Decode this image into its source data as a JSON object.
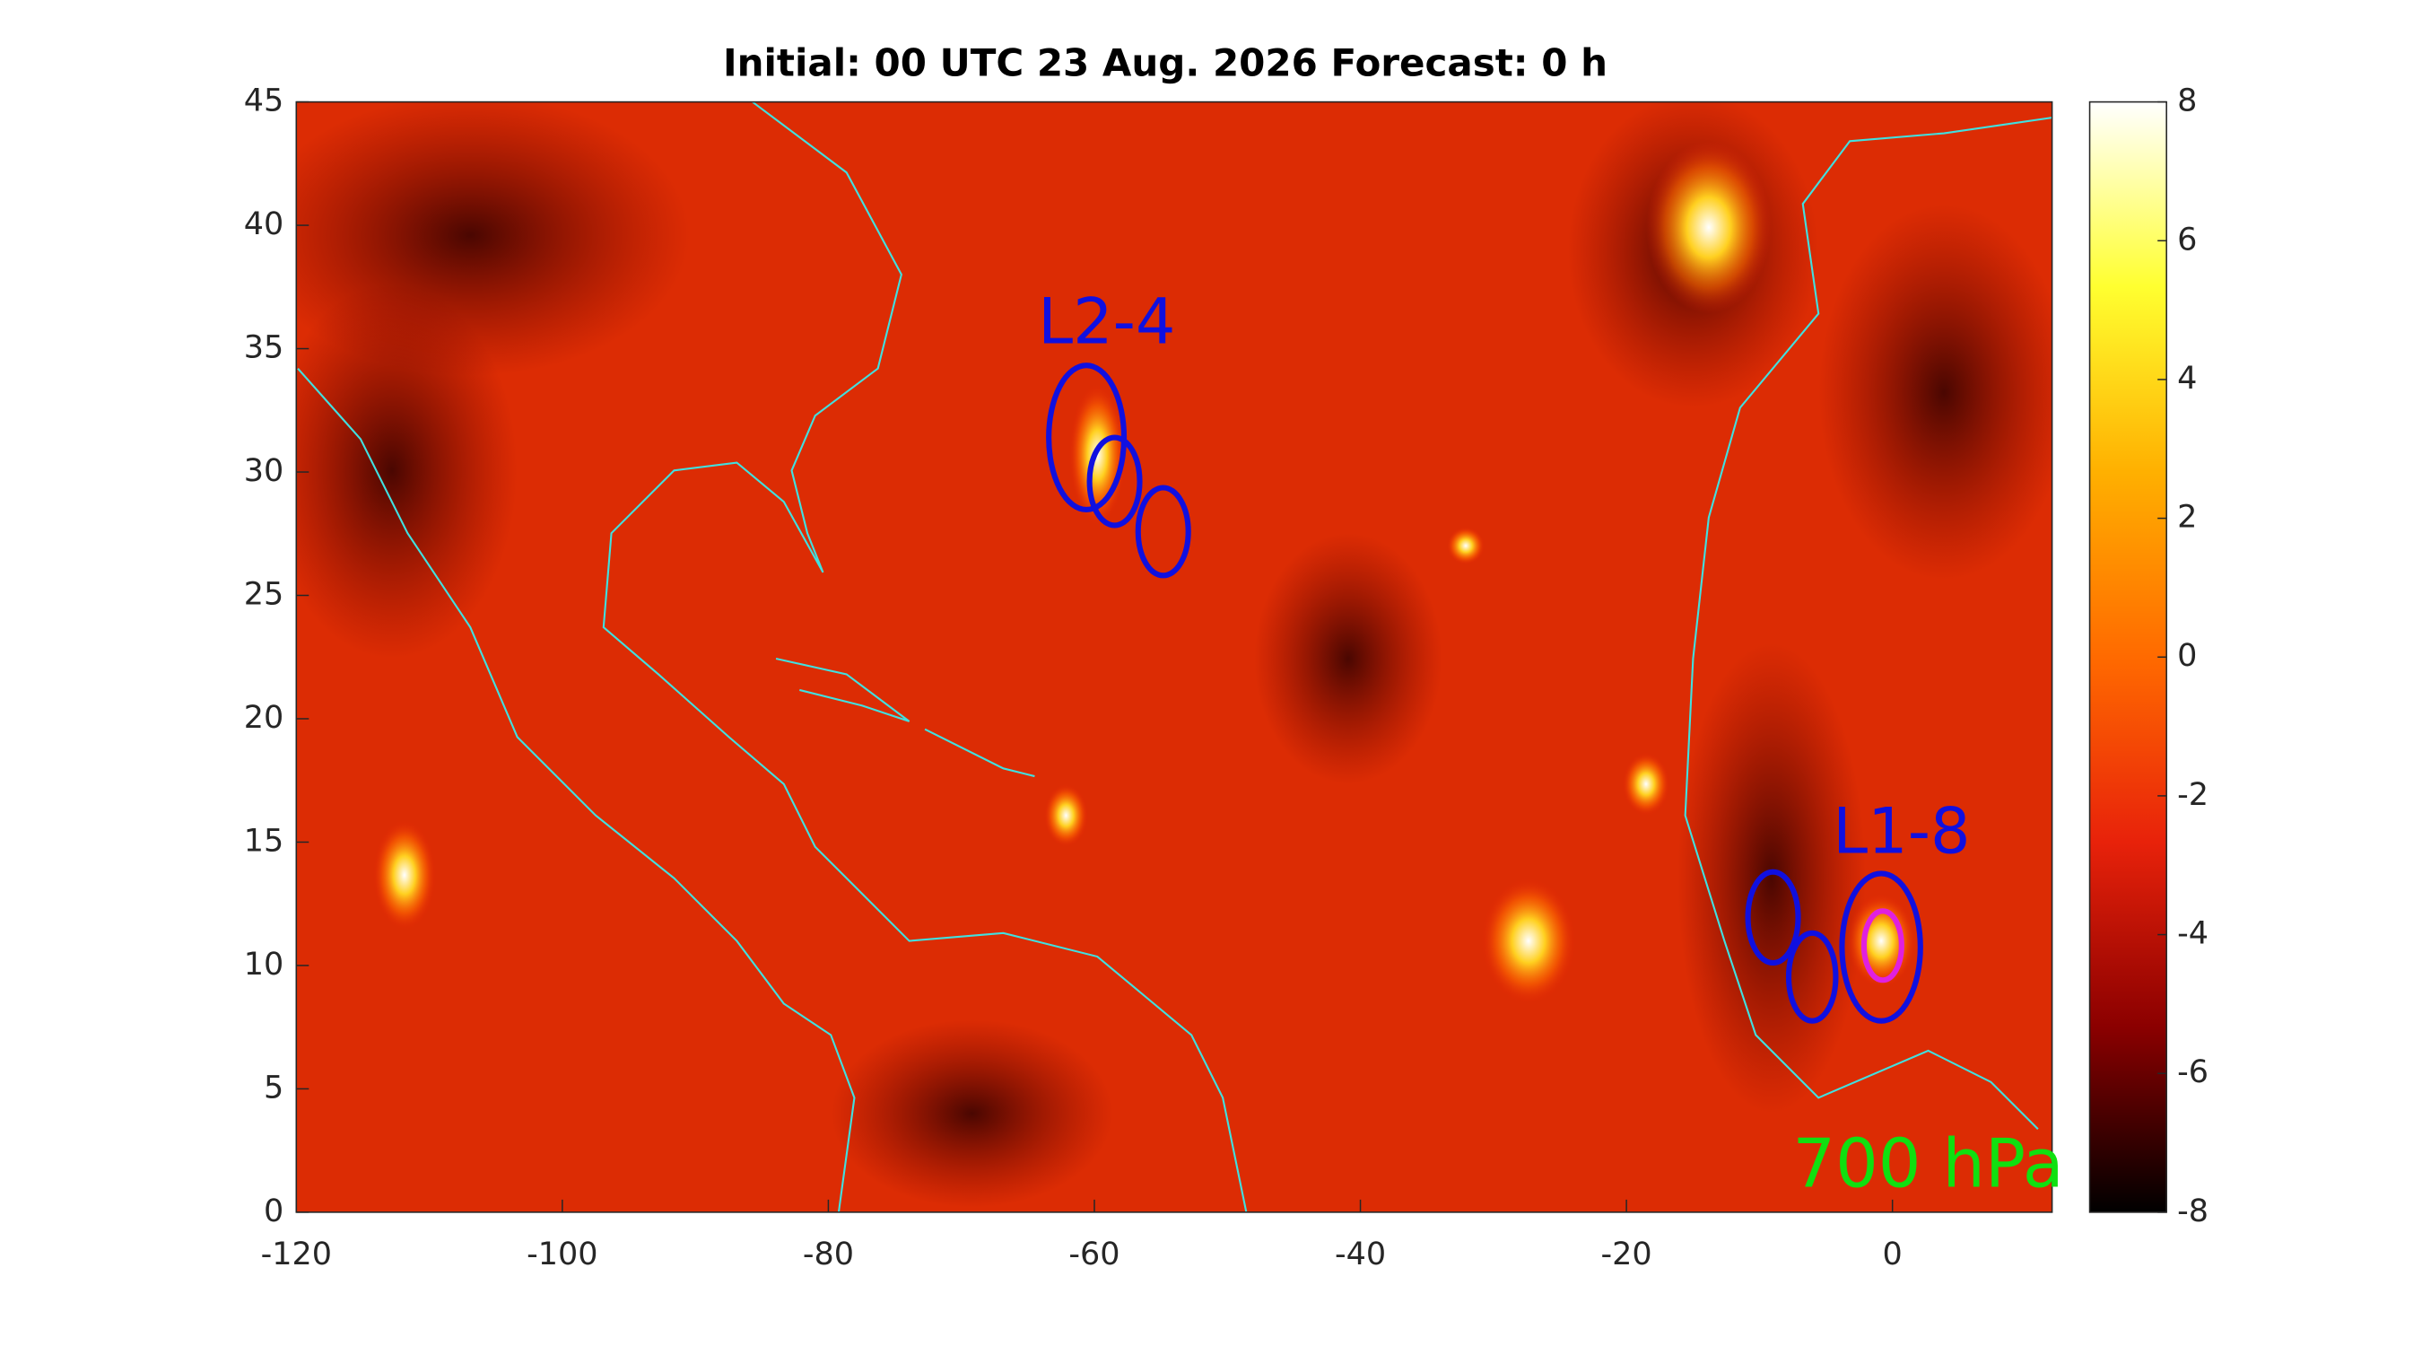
{
  "chart_data": {
    "type": "heatmap",
    "title": "Initial: 00 UTC 23 Aug. 2026 Forecast: 0 h",
    "xlim": [
      -120,
      12
    ],
    "xticks": [
      -120,
      -100,
      -80,
      -60,
      -40,
      -20,
      0
    ],
    "ylim": [
      0,
      45
    ],
    "yticks": [
      0,
      5,
      10,
      15,
      20,
      25,
      30,
      35,
      40,
      45
    ],
    "clim": [
      -8,
      8
    ],
    "cticks": [
      -8,
      -6,
      -4,
      -2,
      0,
      2,
      4,
      6,
      8
    ],
    "colormap": [
      "#000000",
      "#8b0000",
      "#e8220a",
      "#ff6a00",
      "#ffb000",
      "#ffff30",
      "#ffffff"
    ],
    "annotations": [
      "L2-4",
      "L1-8",
      "700 hPa"
    ],
    "annotation_colors": [
      "#1010e0",
      "#1010e0",
      "#10e010"
    ]
  }
}
